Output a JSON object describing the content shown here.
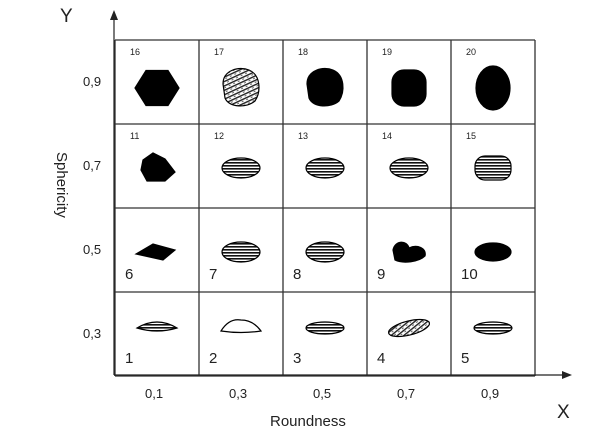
{
  "axis_letters": {
    "y": "Y",
    "x": "X"
  },
  "x_axis": {
    "title": "Roundness",
    "ticks": [
      "0,1",
      "0,3",
      "0,5",
      "0,7",
      "0,9"
    ]
  },
  "y_axis": {
    "title": "Sphericity",
    "ticks": [
      "0,9",
      "0,7",
      "0,5",
      "0,3"
    ]
  },
  "grid": {
    "rows": [
      {
        "sphericity": "0,9",
        "cells": [
          {
            "number": "16",
            "shape": "hexagon",
            "fill": "solid"
          },
          {
            "number": "17",
            "shape": "rounded-blob",
            "fill": "textured"
          },
          {
            "number": "18",
            "shape": "rounded-blob",
            "fill": "solid"
          },
          {
            "number": "19",
            "shape": "rounded-square",
            "fill": "solid"
          },
          {
            "number": "20",
            "shape": "ellipse",
            "fill": "solid"
          }
        ]
      },
      {
        "sphericity": "0,7",
        "cells": [
          {
            "number": "11",
            "shape": "angular-blob",
            "fill": "solid"
          },
          {
            "number": "12",
            "shape": "flat-oval",
            "fill": "striped"
          },
          {
            "number": "13",
            "shape": "flat-oval",
            "fill": "striped"
          },
          {
            "number": "14",
            "shape": "flat-oval",
            "fill": "striped"
          },
          {
            "number": "15",
            "shape": "rounded-oval",
            "fill": "striped"
          }
        ]
      },
      {
        "sphericity": "0,5",
        "cells": [
          {
            "number": "6",
            "shape": "diamond",
            "fill": "solid"
          },
          {
            "number": "7",
            "shape": "flat-oval",
            "fill": "striped"
          },
          {
            "number": "8",
            "shape": "flat-oval",
            "fill": "striped"
          },
          {
            "number": "9",
            "shape": "lumpy-blob",
            "fill": "solid"
          },
          {
            "number": "10",
            "shape": "ellipse",
            "fill": "solid"
          }
        ]
      },
      {
        "sphericity": "0,3",
        "cells": [
          {
            "number": "1",
            "shape": "lens",
            "fill": "striped"
          },
          {
            "number": "2",
            "shape": "dome",
            "fill": "outline"
          },
          {
            "number": "3",
            "shape": "flat-oval",
            "fill": "striped"
          },
          {
            "number": "4",
            "shape": "tilted-oval",
            "fill": "textured"
          },
          {
            "number": "5",
            "shape": "flat-oval",
            "fill": "striped"
          }
        ]
      }
    ]
  }
}
